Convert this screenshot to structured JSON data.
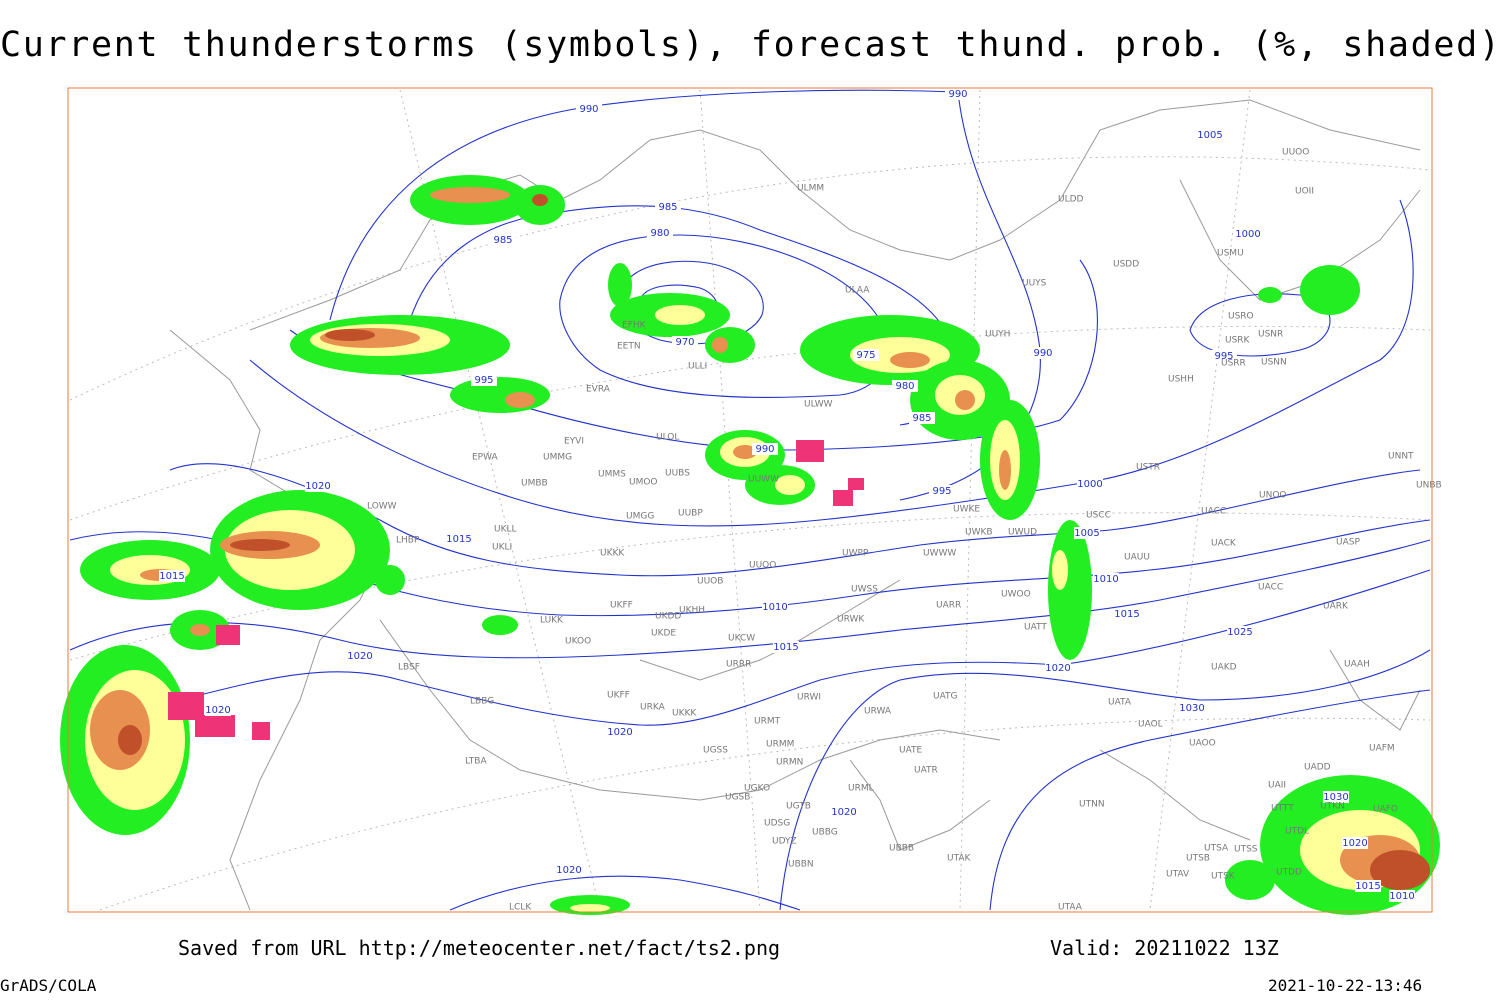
{
  "title": "Current thunderstorms (symbols), forecast thund. prob. (%, shaded)",
  "footer": {
    "source": "Saved from URL http://meteocenter.net/fact/ts2.png",
    "valid": "Valid: 20211022 13Z",
    "credit": "GrADS/COLA",
    "timestamp": "2021-10-22-13:46"
  },
  "isobar_labels": [
    990,
    990,
    1005,
    985,
    985,
    980,
    1000,
    970,
    975,
    995,
    980,
    990,
    985,
    995,
    990,
    995,
    1000,
    1005,
    1020,
    1015,
    1015,
    1010,
    1010,
    1015,
    1025,
    1015,
    1020,
    1020,
    1020,
    1020,
    1030,
    1020,
    1030,
    1020,
    1015,
    1010,
    1020
  ],
  "stations": [
    "ULMM",
    "ULDD",
    "UUOO",
    "UOII",
    "USDD",
    "USMU",
    "ULAA",
    "UUYS",
    "UUYH",
    "USRO",
    "USRK",
    "USNR",
    "USRR",
    "USNN",
    "USHH",
    "EFHK",
    "EETN",
    "ULLI",
    "EVRA",
    "ULWW",
    "EYVI",
    "ULOL",
    "EPWA",
    "UMMG",
    "UMMS",
    "UMOO",
    "UUBS",
    "UUWW",
    "UWKE",
    "UMBB",
    "USTR",
    "UNNT",
    "UNBB",
    "UNOO",
    "UACC",
    "USCC",
    "UMGG",
    "UUBP",
    "UKLL",
    "UKLI",
    "UKKK",
    "UUOO",
    "UWPP",
    "UWWW",
    "UWKB",
    "UWUD",
    "UAUU",
    "UACK",
    "UASP",
    "LOWW",
    "LHBP",
    "UUOB",
    "UWSS",
    "UWOO",
    "UACC",
    "UARK",
    "LUKK",
    "UKFF",
    "UKDD",
    "UKHH",
    "UKDE",
    "UKOO",
    "UKCW",
    "URWK",
    "UARR",
    "UATT",
    "UAKD",
    "UAAH",
    "LBSF",
    "URRR",
    "UKFF",
    "URWI",
    "UATG",
    "UATA",
    "LBBG",
    "UKKK",
    "URKA",
    "URMT",
    "UAOL",
    "UAOO",
    "URWA",
    "UGSS",
    "URMM",
    "UATE",
    "URMN",
    "UATR",
    "UADD",
    "UAFM",
    "LTBA",
    "UGKO",
    "UGSB",
    "URML",
    "UAII",
    "UTTT",
    "UTKN",
    "UAFO",
    "UGTB",
    "UTNN",
    "UDSG",
    "UBBG",
    "UTDL",
    "UDYZ",
    "UBBB",
    "UTAK",
    "UTSA",
    "UTSS",
    "UTSB",
    "UBBN",
    "UTAV",
    "UTSK",
    "UTDD",
    "UTAA",
    "LCLK"
  ]
}
